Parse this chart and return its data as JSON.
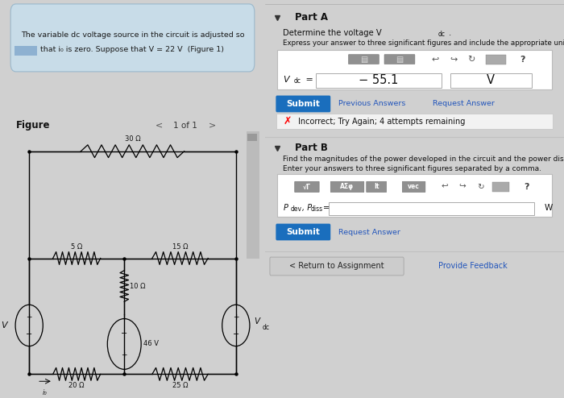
{
  "bg_left": "#d0d0d0",
  "bg_right": "#e8e8e8",
  "problem_box_bg": "#c8dce8",
  "problem_box_edge": "#9ab8cc",
  "problem_text_line1": "The variable dc voltage source in the circuit is adjusted so",
  "problem_text_line2": "that i₀ is zero. Suppose that V = 22 V  (Figure 1)",
  "figure_label": "Figure",
  "nav_text": "1 of 1",
  "part_a_label": "Part A",
  "part_a_question1": "Determine the voltage V",
  "part_a_question2": "dc",
  "part_a_instruction": "Express your answer to three significant figures and include the appropriate units.",
  "vdc_value": "− 55.1",
  "vdc_unit": "V",
  "submit_btn_color": "#1a6ebd",
  "submit_text": "Submit",
  "prev_answers_text": "Previous Answers",
  "request_answer_text": "Request Answer",
  "incorrect_text": "Incorrect; Try Again; 4 attempts remaining",
  "part_b_label": "Part B",
  "part_b_question": "Find the magnitudes of the power developed in the circuit and the power dissipated.",
  "part_b_instruction": "Enter your answers to three significant figures separated by a comma.",
  "pdev_label": "Pdev, Pdiss =",
  "pdis_unit": "W",
  "return_btn_text": "< Return to Assignment",
  "feedback_text": "Provide Feedback"
}
